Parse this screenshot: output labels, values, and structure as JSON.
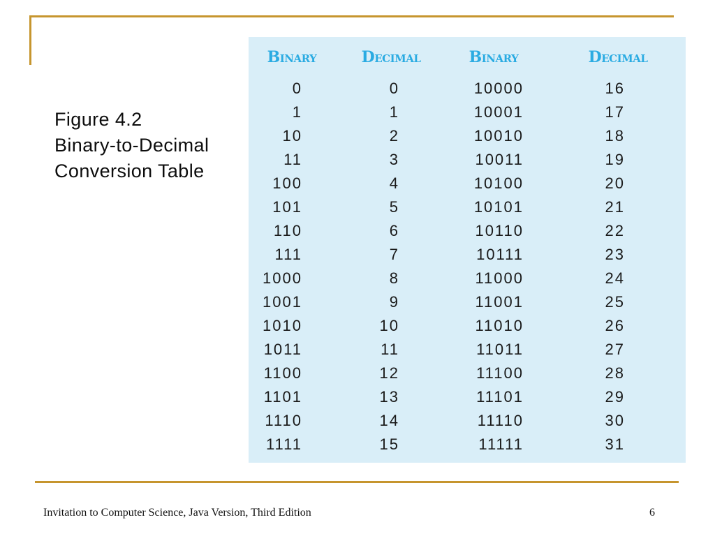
{
  "slide": {
    "caption_lines": [
      "Figure 4.2",
      "Binary-to-Decimal",
      "Conversion Table"
    ],
    "footer": {
      "text": "Invitation to Computer Science, Java Version, Third Edition",
      "page_number": "6"
    }
  },
  "colors": {
    "accent_gold": "#C6952E",
    "table_background": "#D9EEF8",
    "header_text": "#2AABE2",
    "body_text": "#1A1A1A"
  },
  "chart_data": {
    "type": "table",
    "title": "Figure 4.2 Binary-to-Decimal Conversion Table",
    "columns": [
      "Binary",
      "Decimal",
      "Binary",
      "Decimal"
    ],
    "rows": [
      [
        "0",
        "0",
        "10000",
        "16"
      ],
      [
        "1",
        "1",
        "10001",
        "17"
      ],
      [
        "10",
        "2",
        "10010",
        "18"
      ],
      [
        "11",
        "3",
        "10011",
        "19"
      ],
      [
        "100",
        "4",
        "10100",
        "20"
      ],
      [
        "101",
        "5",
        "10101",
        "21"
      ],
      [
        "110",
        "6",
        "10110",
        "22"
      ],
      [
        "111",
        "7",
        "10111",
        "23"
      ],
      [
        "1000",
        "8",
        "11000",
        "24"
      ],
      [
        "1001",
        "9",
        "11001",
        "25"
      ],
      [
        "1010",
        "10",
        "11010",
        "26"
      ],
      [
        "1011",
        "11",
        "11011",
        "27"
      ],
      [
        "1100",
        "12",
        "11100",
        "28"
      ],
      [
        "1101",
        "13",
        "11101",
        "29"
      ],
      [
        "1110",
        "14",
        "11110",
        "30"
      ],
      [
        "1111",
        "15",
        "11111",
        "31"
      ]
    ]
  }
}
